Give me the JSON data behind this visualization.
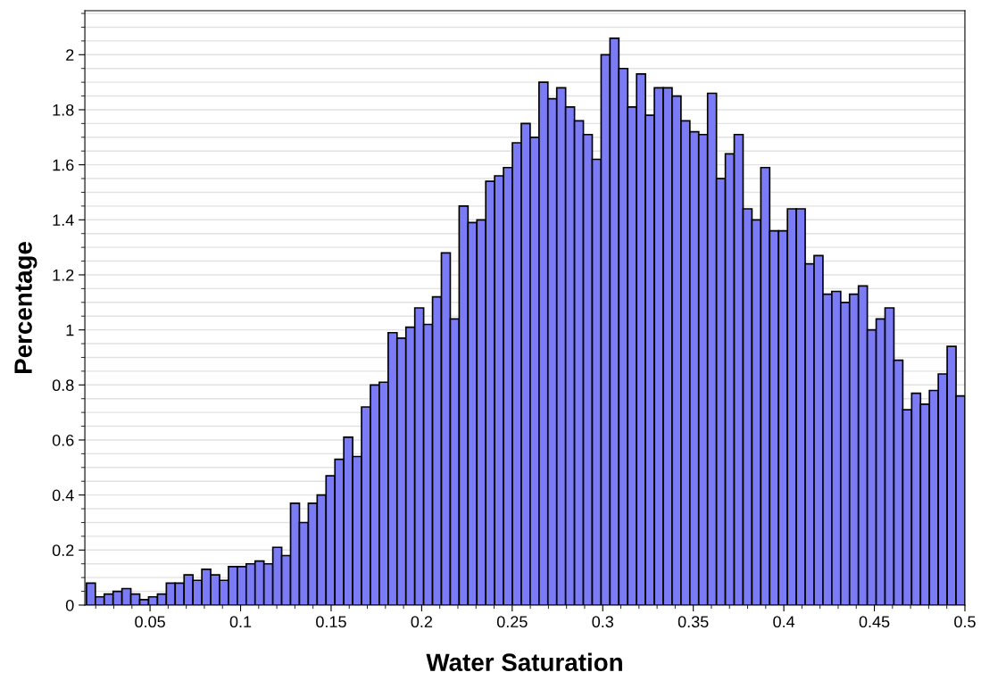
{
  "chart_data": {
    "type": "histogram",
    "xlabel": "Water Saturation",
    "ylabel": "Percentage",
    "color": "#7b7bf5",
    "bins": [
      0.0149,
      0.0198,
      0.0247,
      0.0296,
      0.0345,
      0.0394,
      0.0443,
      0.0492,
      0.0541,
      0.059,
      0.0639,
      0.0688,
      0.0737,
      0.0786,
      0.0835,
      0.0884,
      0.0933,
      0.0982,
      0.1031,
      0.108,
      0.1129,
      0.1178,
      0.1227,
      0.1276,
      0.1325,
      0.1374,
      0.1423,
      0.1472,
      0.1521,
      0.157,
      0.1619,
      0.1668,
      0.1717,
      0.1766,
      0.1815,
      0.1864,
      0.1913,
      0.1962,
      0.2011,
      0.206,
      0.2109,
      0.2158,
      0.2207,
      0.2256,
      0.2305,
      0.2354,
      0.2403,
      0.2452,
      0.2501,
      0.255,
      0.2599,
      0.2648,
      0.2697,
      0.2746,
      0.2795,
      0.2844,
      0.2893,
      0.2942,
      0.2991,
      0.304,
      0.3089,
      0.3138,
      0.3187,
      0.3236,
      0.3285,
      0.3334,
      0.3383,
      0.3432,
      0.3481,
      0.353,
      0.3579,
      0.3628,
      0.3677,
      0.3726,
      0.3775,
      0.3824,
      0.3873,
      0.3922,
      0.3971,
      0.402,
      0.4069,
      0.4118,
      0.4167,
      0.4216,
      0.4265,
      0.4314,
      0.4363,
      0.4412,
      0.4461,
      0.451,
      0.4559,
      0.4608,
      0.4657,
      0.4706,
      0.4755,
      0.4804,
      0.4853,
      0.4902,
      0.4951,
      0.5
    ],
    "values": [
      0.08,
      0.03,
      0.04,
      0.05,
      0.06,
      0.04,
      0.02,
      0.03,
      0.04,
      0.08,
      0.08,
      0.11,
      0.09,
      0.13,
      0.11,
      0.09,
      0.14,
      0.14,
      0.15,
      0.16,
      0.15,
      0.21,
      0.18,
      0.37,
      0.3,
      0.37,
      0.4,
      0.47,
      0.53,
      0.61,
      0.54,
      0.72,
      0.8,
      0.81,
      0.99,
      0.97,
      1.01,
      1.08,
      1.02,
      1.12,
      1.28,
      1.04,
      1.45,
      1.39,
      1.4,
      1.54,
      1.56,
      1.59,
      1.68,
      1.75,
      1.7,
      1.9,
      1.84,
      1.88,
      1.81,
      1.76,
      1.71,
      1.62,
      2.0,
      2.06,
      1.95,
      1.81,
      1.93,
      1.78,
      1.88,
      1.88,
      1.85,
      1.76,
      1.72,
      1.71,
      1.86,
      1.55,
      1.64,
      1.71,
      1.44,
      1.4,
      1.59,
      1.36,
      1.36,
      1.44,
      1.44,
      1.24,
      1.27,
      1.13,
      1.14,
      1.1,
      1.13,
      1.16,
      1.0,
      1.04,
      1.08,
      0.89,
      0.71,
      0.77,
      0.73,
      0.78,
      0.84,
      0.94,
      0.76
    ],
    "xlim": [
      0.014,
      0.5
    ],
    "xticks": [
      0.05,
      0.1,
      0.15,
      0.2,
      0.25,
      0.3,
      0.35,
      0.4,
      0.45,
      0.5
    ],
    "ylim": [
      0,
      2.16
    ],
    "yticks": [
      0,
      0.2,
      0.4,
      0.6,
      0.8,
      1,
      1.2,
      1.4,
      1.6,
      1.8,
      2
    ],
    "grid": "y"
  }
}
